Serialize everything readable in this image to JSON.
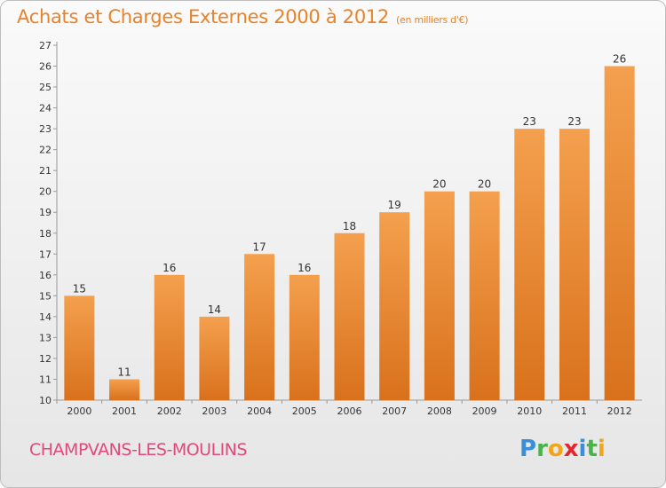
{
  "header": {
    "title": "Achats et Charges Externes 2000 à 2012",
    "unit": "(en milliers d'€)"
  },
  "footer": {
    "commune": "CHAMPVANS-LES-MOULINS",
    "brand_letters": [
      "P",
      "r",
      "o",
      "x",
      "i",
      "t",
      "i"
    ],
    "brand_colors": [
      "#3a8fd6",
      "#49b34a",
      "#f2a51a",
      "#e3262d",
      "#3a8fd6",
      "#49b34a",
      "#f2a51a"
    ]
  },
  "colors": {
    "title": "#e8832a",
    "commune": "#e0497a",
    "bar_light": "#f4a04e",
    "bar_dark": "#d9711c"
  },
  "chart_data": {
    "type": "bar",
    "title": "Achats et Charges Externes 2000 à 2012",
    "subtitle": "(en milliers d'€)",
    "xlabel": "",
    "ylabel": "",
    "categories": [
      "2000",
      "2001",
      "2002",
      "2003",
      "2004",
      "2005",
      "2006",
      "2007",
      "2008",
      "2009",
      "2010",
      "2011",
      "2012"
    ],
    "values": [
      15,
      11,
      16,
      14,
      17,
      16,
      18,
      19,
      20,
      20,
      23,
      23,
      26
    ],
    "ylim": [
      10,
      27
    ],
    "yticks": [
      10,
      11,
      12,
      13,
      14,
      15,
      16,
      17,
      18,
      19,
      20,
      21,
      22,
      23,
      24,
      25,
      26,
      27
    ],
    "grid": false,
    "legend": "none"
  }
}
